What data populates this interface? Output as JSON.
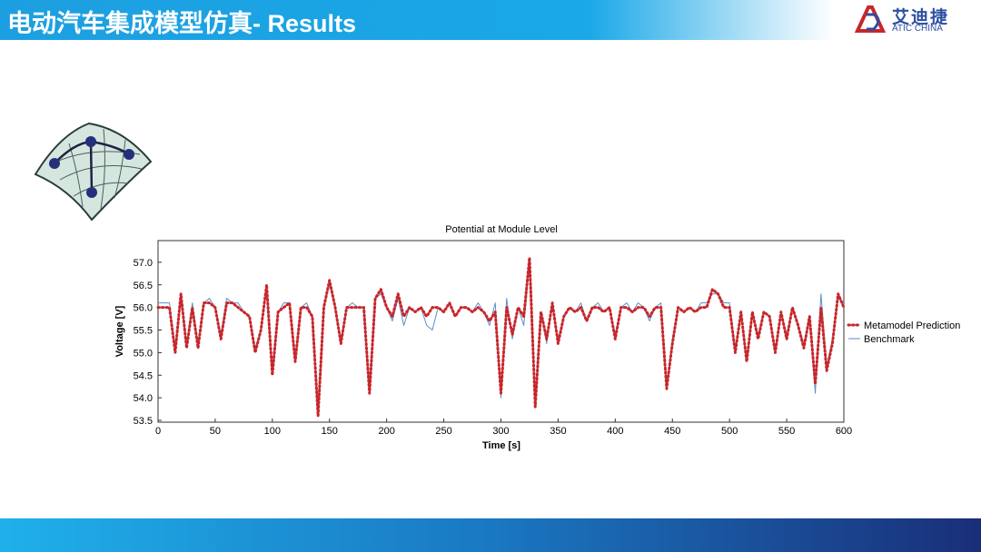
{
  "header": {
    "title": "电动汽车集成模型仿真- Results",
    "logo_cn": "艾迪捷",
    "logo_en": "ATIC CHINA"
  },
  "chart_data": {
    "type": "line",
    "title": "Potential at Module Level",
    "x_label": "Time [s]",
    "y_label": "Voltage [V]",
    "xlim": [
      0,
      600
    ],
    "xticks": [
      0,
      50,
      100,
      150,
      200,
      250,
      300,
      350,
      400,
      450,
      500,
      550,
      600
    ],
    "ylim": [
      53.46,
      57.48
    ],
    "yticks": [
      {
        "value": 53.5,
        "label": "53.5"
      },
      {
        "value": 54,
        "label": "54.0"
      },
      {
        "value": 54.5,
        "label": "54.5"
      },
      {
        "value": 55,
        "label": "55.0"
      },
      {
        "value": 55.5,
        "label": "55.5"
      },
      {
        "value": 56,
        "label": "56.0"
      },
      {
        "value": 56.5,
        "label": "56.5"
      },
      {
        "value": 57,
        "label": "57.0"
      }
    ],
    "legend": "right",
    "x": [
      0,
      5,
      10,
      15,
      20,
      25,
      30,
      35,
      40,
      45,
      50,
      55,
      60,
      65,
      70,
      75,
      80,
      85,
      90,
      95,
      100,
      105,
      110,
      115,
      120,
      125,
      130,
      135,
      140,
      145,
      150,
      155,
      160,
      165,
      170,
      175,
      180,
      185,
      190,
      195,
      200,
      205,
      210,
      215,
      220,
      225,
      230,
      235,
      240,
      245,
      250,
      255,
      260,
      265,
      270,
      275,
      280,
      285,
      290,
      295,
      300,
      305,
      310,
      315,
      320,
      325,
      330,
      335,
      340,
      345,
      350,
      355,
      360,
      365,
      370,
      375,
      380,
      385,
      390,
      395,
      400,
      405,
      410,
      415,
      420,
      425,
      430,
      435,
      440,
      445,
      450,
      455,
      460,
      465,
      470,
      475,
      480,
      485,
      490,
      495,
      500,
      505,
      510,
      515,
      520,
      525,
      530,
      535,
      540,
      545,
      550,
      555,
      560,
      565,
      570,
      575,
      580,
      585,
      590,
      595,
      600
    ],
    "series": [
      {
        "name": "Metamodel Prediction",
        "color": "#c8262b",
        "values": [
          56.0,
          56.0,
          56.0,
          55.0,
          56.3,
          55.1,
          56.0,
          55.1,
          56.1,
          56.1,
          56.0,
          55.3,
          56.1,
          56.1,
          56.0,
          55.9,
          55.8,
          55.0,
          55.5,
          56.5,
          54.5,
          55.9,
          56.0,
          56.1,
          54.8,
          56.0,
          56.0,
          55.8,
          53.6,
          56.0,
          56.6,
          56.0,
          55.2,
          56.0,
          56.0,
          56.0,
          56.0,
          54.1,
          56.2,
          56.4,
          56.0,
          55.8,
          56.3,
          55.8,
          56.0,
          55.9,
          56.0,
          55.8,
          56.0,
          56.0,
          55.9,
          56.1,
          55.8,
          56.0,
          56.0,
          55.9,
          56.0,
          55.9,
          55.7,
          55.9,
          54.1,
          56.0,
          55.4,
          56.0,
          55.8,
          57.1,
          53.8,
          55.9,
          55.3,
          56.1,
          55.2,
          55.8,
          56.0,
          55.9,
          56.0,
          55.7,
          56.0,
          56.0,
          55.9,
          56.0,
          55.3,
          56.0,
          56.0,
          55.9,
          56.0,
          56.0,
          55.8,
          56.0,
          56.0,
          54.2,
          55.2,
          56.0,
          55.9,
          56.0,
          55.9,
          56.0,
          56.0,
          56.4,
          56.3,
          56.0,
          56.0,
          55.0,
          55.9,
          54.8,
          55.9,
          55.3,
          55.9,
          55.8,
          55.0,
          55.9,
          55.3,
          56.0,
          55.6,
          55.1,
          55.8,
          54.3,
          56.0,
          54.6,
          55.2,
          56.3,
          56.0
        ]
      },
      {
        "name": "Benchmark",
        "color": "#5b8fc7",
        "values": [
          56.1,
          56.1,
          56.1,
          55.1,
          56.2,
          55.2,
          56.1,
          55.2,
          56.1,
          56.2,
          56.0,
          55.4,
          56.2,
          56.1,
          56.1,
          55.9,
          55.8,
          55.1,
          55.5,
          56.4,
          54.6,
          55.9,
          56.1,
          56.1,
          54.9,
          56.0,
          56.1,
          55.8,
          53.7,
          56.0,
          56.5,
          56.0,
          55.3,
          56.0,
          56.1,
          56.0,
          56.0,
          54.2,
          56.2,
          56.3,
          56.0,
          55.7,
          56.2,
          55.6,
          56.0,
          55.9,
          56.0,
          55.6,
          55.5,
          56.0,
          55.9,
          56.1,
          55.8,
          56.0,
          56.0,
          55.9,
          56.1,
          55.9,
          55.6,
          56.1,
          54.0,
          56.2,
          55.3,
          56.0,
          55.6,
          57.0,
          53.9,
          55.9,
          55.2,
          56.1,
          55.3,
          55.8,
          56.0,
          55.9,
          56.1,
          55.7,
          56.0,
          56.1,
          55.9,
          56.0,
          55.4,
          56.0,
          56.1,
          55.9,
          56.1,
          56.0,
          55.7,
          56.0,
          56.1,
          54.3,
          55.3,
          56.0,
          55.9,
          56.0,
          55.9,
          56.1,
          56.1,
          56.3,
          56.3,
          56.1,
          56.1,
          55.1,
          55.9,
          54.9,
          55.9,
          55.4,
          55.9,
          55.8,
          55.1,
          55.9,
          55.4,
          56.0,
          55.6,
          55.2,
          55.8,
          54.1,
          56.3,
          54.7,
          55.3,
          56.2,
          56.1
        ]
      }
    ]
  }
}
